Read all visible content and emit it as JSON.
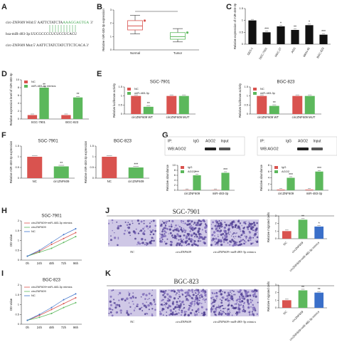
{
  "panel_labels": [
    "A",
    "B",
    "C",
    "D",
    "E",
    "F",
    "G",
    "H",
    "J",
    "I",
    "K"
  ],
  "sequences": [
    {
      "name": "circ-ZNF609 Wild:",
      "seq": "5' AATTCTATCTA",
      "site": "AAAGGAGTGA",
      "end": "3'"
    },
    {
      "name": "hsa-miR-483-3p:",
      "seq": "UUCGCCCCUCUCCUCACU"
    },
    {
      "name": "circ-ZNF609 Mut:",
      "seq": "5' AATTCTATCTATCTTCTCACA 3'"
    }
  ],
  "blots": [
    {
      "ip": "IP:",
      "lanes": [
        "IgG",
        "AGO2",
        "Input"
      ],
      "wb": "WB:AGO2"
    },
    {
      "ip": "IP:",
      "lanes": [
        "IgG",
        "AGO2",
        "Input"
      ],
      "wb": "WB:AGO2"
    }
  ],
  "micrographs": [
    {
      "title": "SGC-7901",
      "labels": [
        "NC",
        "circZNF609",
        "circZNF609+miR-483-3p mimics"
      ]
    },
    {
      "title": "BGC-823",
      "labels": [
        "NC",
        "circZNF609",
        "circZNF609+miR-483-3p mimics"
      ]
    }
  ],
  "chart_data": [
    {
      "type": "box",
      "ylabel": "Relative miR-483-3p expression",
      "categories": [
        "Normal",
        "Tumor"
      ],
      "colors": [
        "#d9534f",
        "#5cb85c"
      ],
      "stats": [
        {
          "min": 1.2,
          "q1": 1.5,
          "median": 1.8,
          "q3": 2.2,
          "max": 2.6
        },
        {
          "min": 0.6,
          "q1": 0.8,
          "median": 1.0,
          "q3": 1.3,
          "max": 1.6
        }
      ],
      "ylim": [
        0,
        3
      ],
      "yticks": [
        0,
        1,
        2,
        3
      ]
    },
    {
      "type": "bar",
      "ylabel": "Relative expression of miR-483-3p",
      "categories": [
        "GES-1",
        "SGC-7901",
        "HGC-27",
        "AGS",
        "MKN-45",
        "BGC-823"
      ],
      "values": [
        1.0,
        0.5,
        0.75,
        0.6,
        0.8,
        0.4
      ],
      "significance": [
        null,
        "***",
        "*",
        "**",
        "*",
        "***"
      ],
      "color": "#111111",
      "ylim": [
        0,
        1.5
      ],
      "yticks": [
        0,
        0.5,
        1,
        1.5
      ]
    },
    {
      "type": "bar",
      "ylabel": "Relative expression level of miR-483-3p",
      "categories": [
        "SGC-7901",
        "BGC-823"
      ],
      "series": [
        {
          "name": "NC",
          "color": "#d9534f",
          "values": [
            1.0,
            1.0
          ]
        },
        {
          "name": "miR-483-3p mimics",
          "color": "#5cb85c",
          "values": [
            8.0,
            5.5
          ],
          "significance": [
            "**",
            "**"
          ]
        }
      ],
      "ylim": [
        0,
        10
      ],
      "yticks": [
        0,
        2,
        4,
        6,
        8,
        10
      ]
    },
    {
      "type": "bar",
      "title": "SGC-7901",
      "ylabel": "Relative luciferase activity",
      "categories": [
        "circZNF609 WT",
        "circZNF609 MUT"
      ],
      "series": [
        {
          "name": "NC",
          "color": "#d9534f",
          "values": [
            1.0,
            1.0
          ]
        },
        {
          "name": "miR-483-3p",
          "color": "#5cb85c",
          "values": [
            0.4,
            1.0
          ],
          "significance": [
            "**",
            null
          ]
        }
      ],
      "ylim": [
        0,
        1.5
      ],
      "yticks": [
        0,
        0.5,
        1,
        1.5
      ]
    },
    {
      "type": "bar",
      "title": "BGC-823",
      "ylabel": "Relative luciferase activity",
      "categories": [
        "circZNF609 WT",
        "circZNF609 MUT"
      ],
      "series": [
        {
          "name": "NC",
          "color": "#d9534f",
          "values": [
            1.0,
            1.0
          ]
        },
        {
          "name": "miR-483-3p",
          "color": "#5cb85c",
          "values": [
            0.45,
            1.0
          ],
          "significance": [
            "**",
            null
          ]
        }
      ],
      "ylim": [
        0,
        1.5
      ],
      "yticks": [
        0,
        0.5,
        1,
        1.5
      ]
    },
    {
      "type": "bar",
      "title": "SGC-7901",
      "ylabel": "Relative miR-483-3p expression",
      "categories": [
        "NC",
        "circZNF609"
      ],
      "values": [
        1.0,
        0.55
      ],
      "colors": [
        "#d9534f",
        "#5cb85c"
      ],
      "significance": [
        null,
        "**"
      ],
      "ylim": [
        0,
        1.5
      ],
      "yticks": [
        0,
        0.5,
        1,
        1.5
      ]
    },
    {
      "type": "bar",
      "title": "BGC-823",
      "ylabel": "Relative miR-483-3p expression",
      "categories": [
        "NC",
        "circZNF609"
      ],
      "values": [
        1.0,
        0.5
      ],
      "colors": [
        "#d9534f",
        "#5cb85c"
      ],
      "significance": [
        null,
        "***"
      ],
      "ylim": [
        0,
        1.5
      ],
      "yticks": [
        0,
        0.5,
        1,
        1.5
      ]
    },
    {
      "type": "bar",
      "ylabel": "Relative abundance",
      "categories": [
        "circZNF609",
        "miR-483-3p"
      ],
      "series": [
        {
          "name": "IgG",
          "color": "#d9534f",
          "values": [
            0.1,
            0.1
          ]
        },
        {
          "name": "AGO2",
          "color": "#5cb85c",
          "values": [
            6,
            7
          ],
          "significance": [
            "***",
            "***"
          ]
        }
      ],
      "ylim": [
        0,
        10
      ],
      "yticks": [
        0,
        2,
        4,
        6,
        8,
        10
      ]
    },
    {
      "type": "bar",
      "ylabel": "Relative abundance",
      "categories": [
        "circZNF609",
        "miR-483-3p"
      ],
      "series": [
        {
          "name": "IgG",
          "color": "#d9534f",
          "values": [
            0.2,
            0.2
          ]
        },
        {
          "name": "AGO2",
          "color": "#5cb85c",
          "values": [
            4,
            6
          ],
          "significance": [
            "***",
            "***"
          ]
        }
      ],
      "ylim": [
        0,
        8
      ],
      "yticks": [
        0,
        2,
        4,
        6,
        8
      ]
    },
    {
      "type": "line",
      "title": "SGC-7901",
      "ylabel": "OD value",
      "categories": [
        "0h",
        "24h",
        "48h",
        "72h",
        "96h"
      ],
      "series": [
        {
          "name": "circZNF609+miR-483-3p mimics",
          "color": "#d9534f",
          "values": [
            0.2,
            0.45,
            0.8,
            1.1,
            1.4
          ]
        },
        {
          "name": "circZNF609",
          "color": "#5cb85c",
          "values": [
            0.2,
            0.4,
            0.6,
            0.9,
            1.2
          ]
        },
        {
          "name": "NC",
          "color": "#3a6fc9",
          "values": [
            0.2,
            0.5,
            0.9,
            1.3,
            1.6
          ]
        }
      ],
      "ylim": [
        0,
        2
      ],
      "yticks": [
        0,
        0.5,
        1,
        1.5,
        2
      ]
    },
    {
      "type": "bar",
      "ylabel": "Relative migrated cells",
      "categories": [
        "NC",
        "circZNF609",
        "circZNF609+miR-483-3p mimics"
      ],
      "values": [
        1.0,
        2.5,
        1.6
      ],
      "colors": [
        "#d9534f",
        "#5cb85c",
        "#3a6fc9"
      ],
      "significance": [
        null,
        "**",
        "*"
      ],
      "ylim": [
        0,
        3
      ],
      "yticks": [
        0,
        1,
        2,
        3
      ]
    },
    {
      "type": "line",
      "title": "BGC-823",
      "ylabel": "OD value",
      "categories": [
        "0h",
        "24h",
        "48h",
        "72h",
        "96h"
      ],
      "series": [
        {
          "name": "circZNF609+miR-483-3p mimics",
          "color": "#d9534f",
          "values": [
            0.2,
            0.45,
            0.75,
            1.05,
            1.35
          ]
        },
        {
          "name": "circZNF609",
          "color": "#5cb85c",
          "values": [
            0.2,
            0.35,
            0.55,
            0.85,
            1.1
          ]
        },
        {
          "name": "NC",
          "color": "#3a6fc9",
          "values": [
            0.2,
            0.5,
            0.85,
            1.25,
            1.55
          ]
        }
      ],
      "ylim": [
        0,
        2
      ],
      "yticks": [
        0,
        0.5,
        1,
        1.5,
        2
      ]
    },
    {
      "type": "bar",
      "ylabel": "Relative migrated cells",
      "categories": [
        "NC",
        "circZNF609",
        "circZNF609+miR-483-3p mimics"
      ],
      "values": [
        1.0,
        2.3,
        2.0
      ],
      "colors": [
        "#d9534f",
        "#5cb85c",
        "#3a6fc9"
      ],
      "significance": [
        null,
        "**",
        "**"
      ],
      "ylim": [
        0,
        3
      ],
      "yticks": [
        0,
        1,
        2,
        3
      ]
    }
  ]
}
